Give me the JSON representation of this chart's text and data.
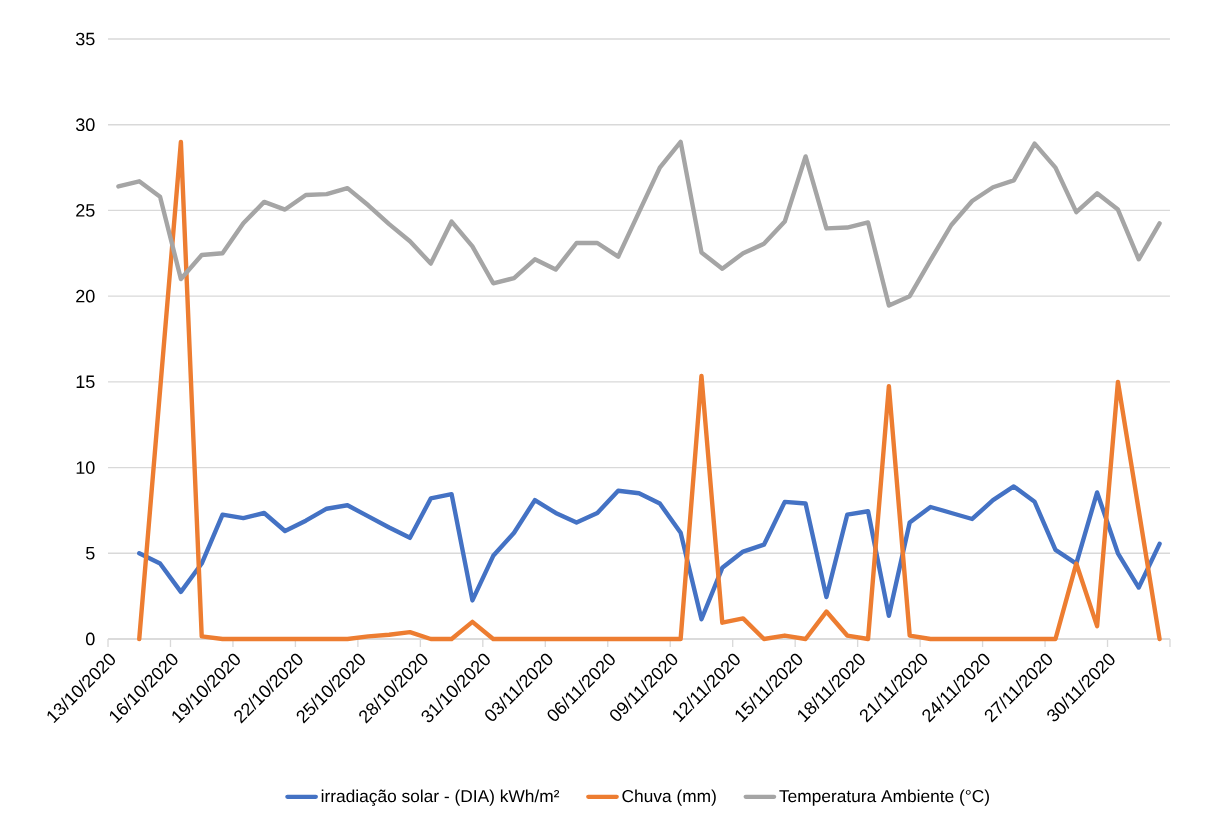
{
  "chart_data": {
    "type": "line",
    "x": [
      "2020-10-13T12:00",
      "2020-10-14T12:00",
      "2020-10-15T12:00",
      "2020-10-16T12:00",
      "2020-10-17T12:00",
      "2020-10-18T12:00",
      "2020-10-19T12:00",
      "2020-10-20T12:00",
      "2020-10-21T12:00",
      "2020-10-22T12:00",
      "2020-10-23T12:00",
      "2020-10-24T12:00",
      "2020-10-25T12:00",
      "2020-10-26T12:00",
      "2020-10-27T12:00",
      "2020-10-28T12:00",
      "2020-10-29T12:00",
      "2020-10-30T12:00",
      "2020-10-31T12:00",
      "2020-11-01T12:00",
      "2020-11-02T12:00",
      "2020-11-03T12:00",
      "2020-11-04T12:00",
      "2020-11-05T12:00",
      "2020-11-06T12:00",
      "2020-11-07T12:00",
      "2020-11-08T12:00",
      "2020-11-09T12:00",
      "2020-11-10T12:00",
      "2020-11-11T12:00",
      "2020-11-12T12:00",
      "2020-11-13T12:00",
      "2020-11-14T12:00",
      "2020-11-15T12:00",
      "2020-11-16T12:00",
      "2020-11-17T12:00",
      "2020-11-18T12:00",
      "2020-11-19T12:00",
      "2020-11-20T12:00",
      "2020-11-21T12:00",
      "2020-11-22T12:00",
      "2020-11-23T12:00",
      "2020-11-24T12:00",
      "2020-11-25T12:00",
      "2020-11-26T12:00",
      "2020-11-27T12:00",
      "2020-11-28T12:00",
      "2020-11-29T12:00",
      "2020-11-30T12:00",
      "2020-12-01T12:00",
      "2020-12-02T12:00"
    ],
    "series": [
      {
        "name": "irradiação solar - (DIA) kWh/m²",
        "color": "#4472c4",
        "values": [
          null,
          5.0,
          4.4,
          2.75,
          4.4,
          7.25,
          7.05,
          7.35,
          6.3,
          6.9,
          7.6,
          7.8,
          7.15,
          6.5,
          5.9,
          8.2,
          8.45,
          2.25,
          4.85,
          6.2,
          8.1,
          7.35,
          6.8,
          7.35,
          8.65,
          8.5,
          7.9,
          6.2,
          1.15,
          4.15,
          5.1,
          5.5,
          8.0,
          7.9,
          2.45,
          7.25,
          7.45,
          1.35,
          6.8,
          7.7,
          7.35,
          7.0,
          8.1,
          8.9,
          8.0,
          5.2,
          4.4,
          8.55,
          5.0,
          3.0,
          5.55
        ]
      },
      {
        "name": "Chuva (mm)",
        "color": "#ed7d31",
        "values": [
          null,
          0,
          14.5,
          29.0,
          0.15,
          0,
          0,
          0,
          0,
          0,
          0,
          0,
          0.15,
          0.25,
          0.4,
          0,
          0,
          1.0,
          0,
          0,
          0,
          0,
          0,
          0,
          0,
          0,
          0,
          0,
          15.35,
          0.95,
          1.2,
          0,
          0.2,
          0,
          1.6,
          0.2,
          0,
          14.75,
          0.2,
          0,
          0,
          0,
          0,
          0,
          0,
          0,
          4.4,
          0.75,
          15.0,
          7.5,
          0
        ]
      },
      {
        "name": "Temperatura Ambiente (°C)",
        "color": "#a5a5a5",
        "values": [
          26.4,
          26.7,
          25.8,
          21.0,
          22.4,
          22.5,
          24.25,
          25.5,
          25.05,
          25.9,
          25.95,
          26.3,
          25.3,
          24.2,
          23.2,
          21.9,
          24.35,
          22.9,
          20.75,
          21.05,
          22.15,
          21.55,
          23.1,
          23.1,
          22.3,
          24.9,
          27.5,
          29.0,
          22.55,
          21.6,
          22.5,
          23.05,
          24.35,
          28.15,
          23.95,
          24.0,
          24.3,
          19.45,
          20.0,
          22.1,
          24.15,
          25.55,
          26.35,
          26.75,
          28.9,
          27.5,
          24.9,
          26.0,
          25.05,
          22.15,
          24.25
        ]
      }
    ],
    "xlim": [
      "2020-10-13",
      "2020-12-03"
    ],
    "xticks": [
      {
        "value": "2020-10-13",
        "label": "13/10/2020"
      },
      {
        "value": "2020-10-16",
        "label": "16/10/2020"
      },
      {
        "value": "2020-10-19",
        "label": "19/10/2020"
      },
      {
        "value": "2020-10-22",
        "label": "22/10/2020"
      },
      {
        "value": "2020-10-25",
        "label": "25/10/2020"
      },
      {
        "value": "2020-10-28",
        "label": "28/10/2020"
      },
      {
        "value": "2020-10-31",
        "label": "31/10/2020"
      },
      {
        "value": "2020-11-03",
        "label": "03/11/2020"
      },
      {
        "value": "2020-11-06",
        "label": "06/11/2020"
      },
      {
        "value": "2020-11-09",
        "label": "09/11/2020"
      },
      {
        "value": "2020-11-12",
        "label": "12/11/2020"
      },
      {
        "value": "2020-11-15",
        "label": "15/11/2020"
      },
      {
        "value": "2020-11-18",
        "label": "18/11/2020"
      },
      {
        "value": "2020-11-21",
        "label": "21/11/2020"
      },
      {
        "value": "2020-11-24",
        "label": "24/11/2020"
      },
      {
        "value": "2020-11-27",
        "label": "27/11/2020"
      },
      {
        "value": "2020-11-30",
        "label": "30/11/2020"
      },
      {
        "value": "2020-12-03",
        "label": null
      }
    ],
    "ylim": [
      0,
      35
    ],
    "yticks": [
      0,
      5,
      10,
      15,
      20,
      25,
      30,
      35
    ],
    "grid": "y",
    "legend": "bottom",
    "marker": "none",
    "line_style": "solid"
  }
}
